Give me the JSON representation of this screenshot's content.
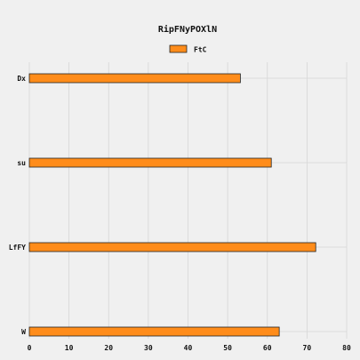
{
  "chart_data": {
    "type": "bar",
    "orientation": "horizontal",
    "title": "RipFNyPOXlN",
    "categories": [
      "Dx",
      "su",
      "LfFY",
      "W"
    ],
    "series": [
      {
        "name": "FtC",
        "values": [
          53.2,
          61,
          72.2,
          63
        ]
      }
    ],
    "xlim": [
      0,
      80
    ],
    "xticks": [
      0,
      10,
      20,
      30,
      40,
      50,
      60,
      70,
      80
    ],
    "grid": true,
    "legend_position": "top-center",
    "colors": {
      "bar_fill": "#ff8c1a",
      "bar_edge": "#222222",
      "grid": "#d6d6d6",
      "background": "#f0f0f0"
    }
  }
}
